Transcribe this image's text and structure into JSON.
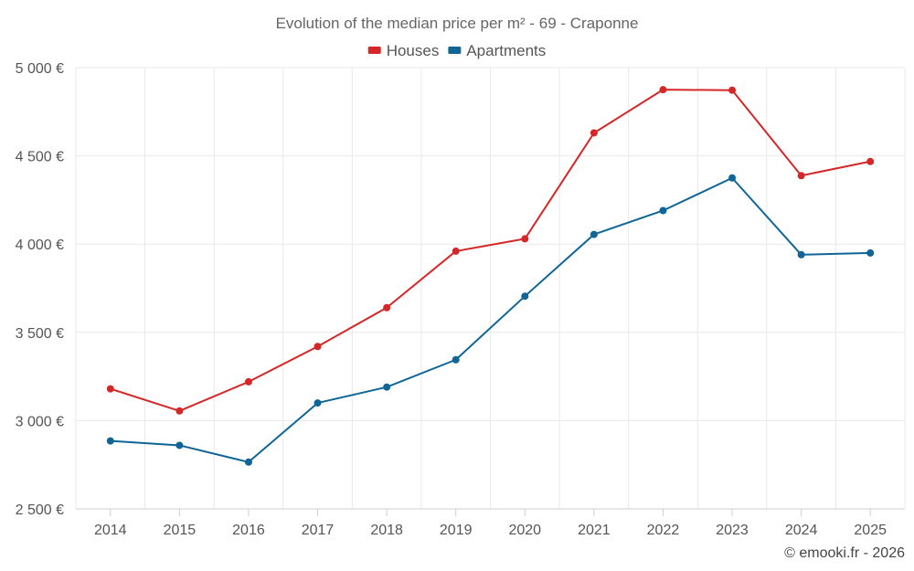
{
  "chart_data": {
    "type": "line",
    "title": "Evolution of the median price per m² - 69 - Craponne",
    "categories": [
      "2014",
      "2015",
      "2016",
      "2017",
      "2018",
      "2019",
      "2020",
      "2021",
      "2022",
      "2023",
      "2024",
      "2025"
    ],
    "series": [
      {
        "name": "Houses",
        "color": "#d62728",
        "values": [
          3180,
          3055,
          3220,
          3420,
          3640,
          3960,
          4030,
          4630,
          4875,
          4872,
          4388,
          4468
        ]
      },
      {
        "name": "Apartments",
        "color": "#0f6696",
        "values": [
          2885,
          2860,
          2765,
          3100,
          3190,
          3345,
          3705,
          4055,
          4190,
          4375,
          3940,
          3950
        ]
      }
    ],
    "ylim": [
      2500,
      5000
    ],
    "yticks": [
      2500,
      3000,
      3500,
      4000,
      4500,
      5000
    ],
    "ytick_labels": [
      "2 500 €",
      "3 000 €",
      "3 500 €",
      "4 000 €",
      "4 500 €",
      "5 000 €"
    ],
    "xlabel": "",
    "ylabel": "",
    "grid": true,
    "legend_position": "top-center"
  },
  "credit": "© emooki.fr - 2026"
}
